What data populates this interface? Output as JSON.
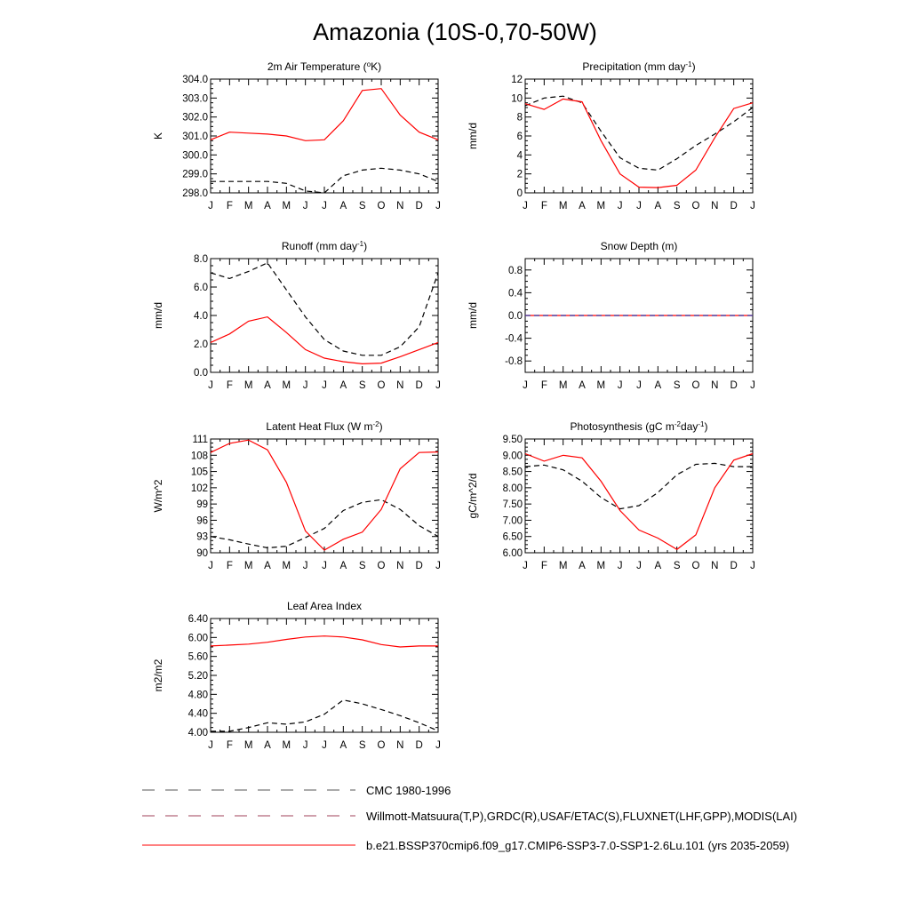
{
  "page_title": "Amazonia (10S-0,70-50W)",
  "legend": [
    {
      "label": "CMC 1980-1996",
      "color": "#555555",
      "dash": true
    },
    {
      "label": "Willmott-Matsuura(T,P),GRDC(R),USAF/ETAC(S),FLUXNET(LHF,GPP),MODIS(LAI)",
      "color": "#a0405a",
      "dash": true
    },
    {
      "label": "b.e21.BSSP370cmip6.f09_g17.CMIP6-SSP3-7.0-SSP1-2.6Lu.101 (yrs 2035-2059)",
      "color": "#ff0000",
      "dash": false
    }
  ],
  "chart_data": [
    {
      "type": "line",
      "title": "2m Air Temperature (",
      "title_sup": "o",
      "title_after": "K)",
      "ylabel": "K",
      "x": [
        "J",
        "F",
        "M",
        "A",
        "M",
        "J",
        "J",
        "A",
        "S",
        "O",
        "N",
        "D",
        "J"
      ],
      "ylim": [
        298.0,
        304.0
      ],
      "yticks": [
        "298.0",
        "299.0",
        "300.0",
        "301.0",
        "302.0",
        "303.0",
        "304.0"
      ],
      "series": [
        {
          "style": "dashed",
          "color": "#000000",
          "values": [
            298.6,
            298.6,
            298.6,
            298.6,
            298.5,
            298.1,
            298.0,
            298.9,
            299.2,
            299.3,
            299.2,
            299.0,
            298.6
          ]
        },
        {
          "style": "solid",
          "color": "#ff0000",
          "values": [
            300.8,
            301.2,
            301.15,
            301.1,
            301.0,
            300.75,
            300.8,
            301.8,
            303.4,
            303.5,
            302.1,
            301.2,
            300.8
          ]
        }
      ]
    },
    {
      "type": "line",
      "title": "Precipitation (mm day",
      "title_sup": "-1",
      "title_after": ")",
      "ylabel": "mm/d",
      "x": [
        "J",
        "F",
        "M",
        "A",
        "M",
        "J",
        "J",
        "A",
        "S",
        "O",
        "N",
        "D",
        "J"
      ],
      "ylim": [
        0,
        12
      ],
      "yticks": [
        "0",
        "2",
        "4",
        "6",
        "8",
        "10",
        "12"
      ],
      "series": [
        {
          "style": "dashed",
          "color": "#000000",
          "values": [
            9.2,
            10.0,
            10.2,
            9.5,
            6.5,
            3.7,
            2.6,
            2.4,
            3.6,
            5.0,
            6.2,
            7.5,
            9.0
          ]
        },
        {
          "style": "solid",
          "color": "#ff0000",
          "values": [
            9.4,
            8.8,
            9.9,
            9.6,
            5.5,
            2.0,
            0.6,
            0.55,
            0.8,
            2.4,
            5.8,
            8.9,
            9.5
          ]
        }
      ]
    },
    {
      "type": "line",
      "title": "Runoff (mm day",
      "title_sup": "-1",
      "title_after": ")",
      "ylabel": "mm/d",
      "x": [
        "J",
        "F",
        "M",
        "A",
        "M",
        "J",
        "J",
        "A",
        "S",
        "O",
        "N",
        "D",
        "J"
      ],
      "ylim": [
        0,
        8
      ],
      "yticks": [
        "0.0",
        "2.0",
        "4.0",
        "6.0",
        "8.0"
      ],
      "series": [
        {
          "style": "dashed",
          "color": "#000000",
          "values": [
            7.0,
            6.6,
            7.1,
            7.7,
            5.8,
            3.9,
            2.3,
            1.5,
            1.2,
            1.2,
            1.8,
            3.2,
            7.0
          ]
        },
        {
          "style": "solid",
          "color": "#ff0000",
          "values": [
            2.1,
            2.7,
            3.6,
            3.9,
            2.8,
            1.6,
            1.0,
            0.75,
            0.6,
            0.65,
            1.1,
            1.6,
            2.1
          ]
        }
      ]
    },
    {
      "type": "line",
      "title": "Snow Depth (m)",
      "title_sup": "",
      "title_after": "",
      "ylabel": "mm/d",
      "x": [
        "J",
        "F",
        "M",
        "A",
        "M",
        "J",
        "J",
        "A",
        "S",
        "O",
        "N",
        "D",
        "J"
      ],
      "ylim": [
        -1.0,
        1.0
      ],
      "yticks": [
        "-0.8",
        "-0.4",
        "0.0",
        "0.4",
        "0.8"
      ],
      "ytick_values": [
        -0.8,
        -0.4,
        0.0,
        0.4,
        0.8
      ],
      "series": [
        {
          "style": "solid",
          "color": "#ff0000",
          "values": [
            0,
            0,
            0,
            0,
            0,
            0,
            0,
            0,
            0,
            0,
            0,
            0,
            0
          ]
        },
        {
          "style": "dashed",
          "color": "#3030a0",
          "values": [
            0,
            0,
            0,
            0,
            0,
            0,
            0,
            0,
            0,
            0,
            0,
            0,
            0
          ]
        }
      ]
    },
    {
      "type": "line",
      "title": "Latent Heat Flux (W m",
      "title_sup": "-2",
      "title_after": ")",
      "ylabel": "W/m^2",
      "x": [
        "J",
        "F",
        "M",
        "A",
        "M",
        "J",
        "J",
        "A",
        "S",
        "O",
        "N",
        "D",
        "J"
      ],
      "ylim": [
        90,
        111
      ],
      "yticks": [
        "90",
        "93",
        "96",
        "99",
        "102",
        "105",
        "108",
        "111"
      ],
      "series": [
        {
          "style": "dashed",
          "color": "#000000",
          "values": [
            93.0,
            92.4,
            91.6,
            90.9,
            91.2,
            92.8,
            94.5,
            97.8,
            99.3,
            99.8,
            98.0,
            95.0,
            93.0
          ]
        },
        {
          "style": "solid",
          "color": "#ff0000",
          "values": [
            108.5,
            110.2,
            110.8,
            109.0,
            103.0,
            94.0,
            90.5,
            92.5,
            93.8,
            98.0,
            105.5,
            108.5,
            108.6
          ]
        }
      ]
    },
    {
      "type": "line",
      "title": "Photosynthesis (gC m",
      "title_sup": "-2",
      "title_after": "day",
      "title_sup2": "-1",
      "title_after2": ")",
      "ylabel": "gC/m^2/d",
      "x": [
        "J",
        "F",
        "M",
        "A",
        "M",
        "J",
        "J",
        "A",
        "S",
        "O",
        "N",
        "D",
        "J"
      ],
      "ylim": [
        6.0,
        9.5
      ],
      "yticks": [
        "6.00",
        "6.50",
        "7.00",
        "7.50",
        "8.00",
        "8.50",
        "9.00",
        "9.50"
      ],
      "series": [
        {
          "style": "dashed",
          "color": "#000000",
          "values": [
            8.65,
            8.7,
            8.55,
            8.2,
            7.7,
            7.35,
            7.45,
            7.85,
            8.4,
            8.72,
            8.75,
            8.65,
            8.65
          ]
        },
        {
          "style": "solid",
          "color": "#ff0000",
          "values": [
            9.05,
            8.82,
            9.0,
            8.92,
            8.2,
            7.3,
            6.7,
            6.45,
            6.1,
            6.55,
            8.0,
            8.85,
            9.05
          ]
        }
      ]
    },
    {
      "type": "line",
      "title": "Leaf Area Index",
      "title_sup": "",
      "title_after": "",
      "ylabel": "m2/m2",
      "x": [
        "J",
        "F",
        "M",
        "A",
        "M",
        "J",
        "J",
        "A",
        "S",
        "O",
        "N",
        "D",
        "J"
      ],
      "ylim": [
        4.0,
        6.4
      ],
      "yticks": [
        "4.00",
        "4.40",
        "4.80",
        "5.20",
        "5.60",
        "6.00",
        "6.40"
      ],
      "series": [
        {
          "style": "dashed",
          "color": "#000000",
          "values": [
            4.02,
            4.02,
            4.1,
            4.2,
            4.17,
            4.22,
            4.38,
            4.68,
            4.6,
            4.48,
            4.35,
            4.2,
            4.03
          ]
        },
        {
          "style": "solid",
          "color": "#ff0000",
          "values": [
            5.82,
            5.84,
            5.86,
            5.9,
            5.96,
            6.01,
            6.03,
            6.01,
            5.95,
            5.85,
            5.8,
            5.82,
            5.82
          ]
        }
      ]
    }
  ]
}
